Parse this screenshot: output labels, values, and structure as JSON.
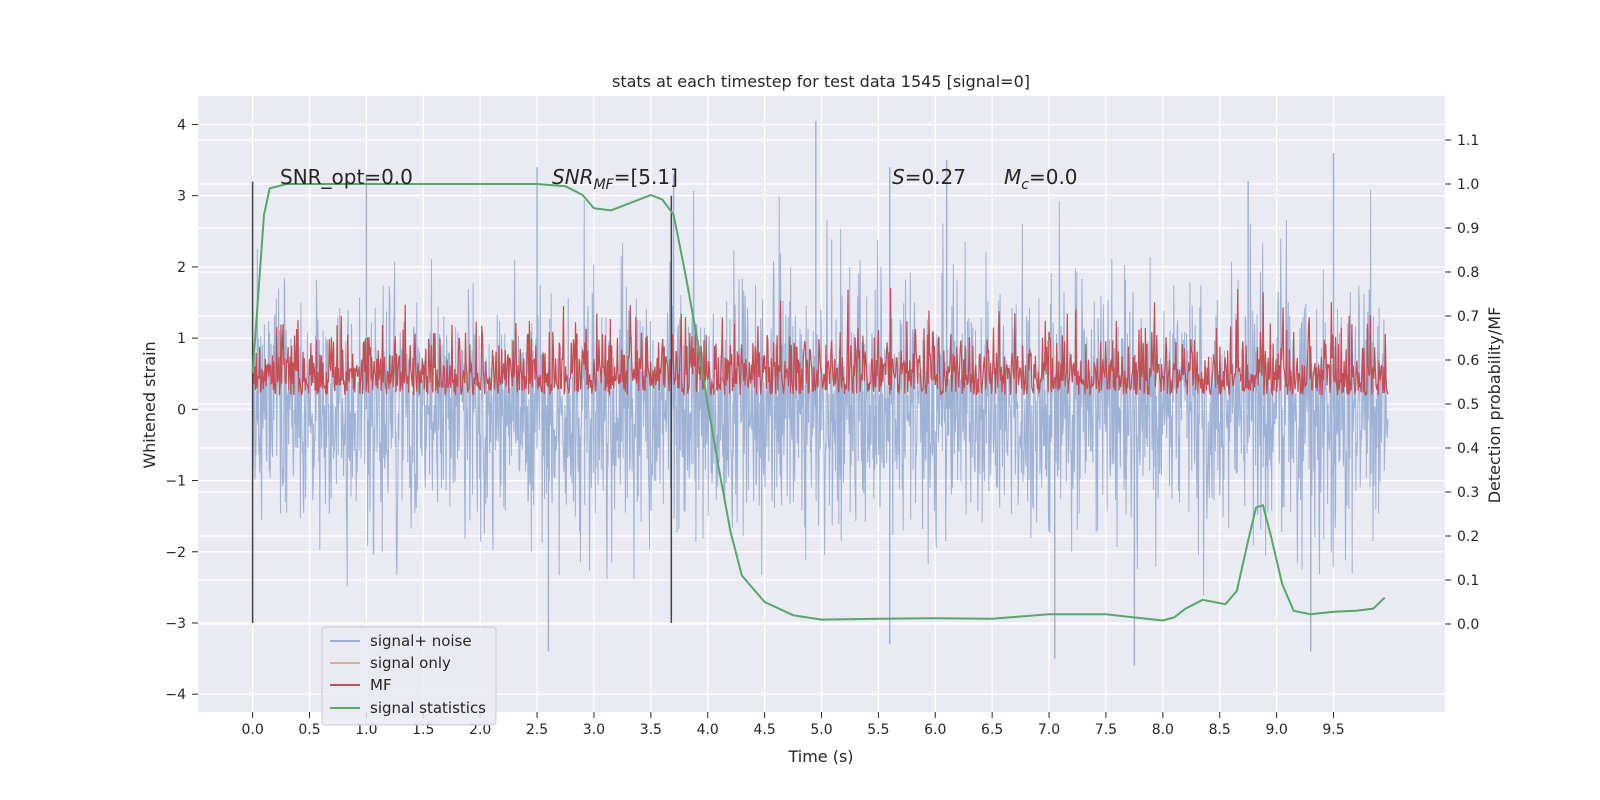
{
  "chart_data": {
    "type": "line",
    "title": "stats at each timestep for test data 1545 [signal=0]",
    "xlabel": "Time (s)",
    "ylabel": "Whitened strain",
    "y2label": "Detection probability/MF",
    "xlim": [
      -0.48,
      10.48
    ],
    "ylim": [
      -4.25,
      4.4
    ],
    "y2lim": [
      -0.2,
      1.2
    ],
    "x_ticks": [
      "0.0",
      "0.5",
      "1.0",
      "1.5",
      "2.0",
      "2.5",
      "3.0",
      "3.5",
      "4.0",
      "4.5",
      "5.0",
      "5.5",
      "6.0",
      "6.5",
      "7.0",
      "7.5",
      "8.0",
      "8.5",
      "9.0",
      "9.5"
    ],
    "y_ticks": [
      "4",
      "3",
      "2",
      "1",
      "0",
      "−1",
      "−2",
      "−3",
      "−4"
    ],
    "y2_ticks": [
      "1.1",
      "1.0",
      "0.9",
      "0.8",
      "0.7",
      "0.6",
      "0.5",
      "0.4",
      "0.3",
      "0.2",
      "0.1",
      "0.0"
    ],
    "grid": true,
    "legend_position": "lower-left",
    "annotations": {
      "snr_opt": "SNR_opt=0.0",
      "snr_mf_prefix": "SNR",
      "snr_mf_sub": "MF",
      "snr_mf_suffix": "=[5.1]",
      "s_prefix": "S",
      "s_suffix": "=0.27",
      "mc_prefix": "M",
      "mc_sub": "c",
      "mc_suffix": "=0.0"
    },
    "markers": [
      {
        "name": "start-marker",
        "x": 0.0,
        "y_range": [
          -3.0,
          3.2
        ]
      },
      {
        "name": "detection-marker",
        "x": 3.68,
        "y_range": [
          -3.0,
          3.0
        ]
      }
    ],
    "series": [
      {
        "name": "signal+ noise",
        "color": "#9aafd3",
        "axis": "left",
        "kind": "noise",
        "x_range": [
          0.0,
          9.98
        ],
        "spread": 0.85,
        "peaks": [
          [
            1.0,
            3.3
          ],
          [
            2.5,
            3.4
          ],
          [
            3.7,
            3.3
          ],
          [
            4.95,
            4.05
          ],
          [
            5.6,
            3.4
          ],
          [
            6.1,
            3.5
          ],
          [
            8.75,
            3.2
          ],
          [
            9.5,
            3.6
          ],
          [
            2.6,
            -3.4
          ],
          [
            7.05,
            -3.5
          ],
          [
            7.75,
            -3.6
          ],
          [
            9.3,
            -3.4
          ],
          [
            5.6,
            -3.3
          ]
        ]
      },
      {
        "name": "signal only",
        "color": "#e8a78f",
        "axis": "left",
        "kind": "none"
      },
      {
        "name": "MF",
        "color": "#c44e52",
        "axis": "right",
        "kind": "mf",
        "x_range": [
          0.0,
          9.98
        ],
        "base": 0.53,
        "amplitude": 0.07,
        "peaks": [
          [
            2.85,
            0.66
          ],
          [
            3.1,
            0.64
          ],
          [
            4.78,
            0.63
          ],
          [
            8.7,
            0.62
          ]
        ]
      },
      {
        "name": "signal statistics",
        "color": "#55a868",
        "axis": "right",
        "kind": "line",
        "x": [
          0.0,
          0.05,
          0.1,
          0.15,
          0.3,
          1.0,
          2.0,
          2.5,
          2.75,
          2.9,
          3.0,
          3.15,
          3.3,
          3.5,
          3.6,
          3.7,
          3.8,
          3.9,
          4.0,
          4.1,
          4.2,
          4.3,
          4.5,
          4.75,
          5.0,
          5.5,
          6.0,
          6.5,
          7.0,
          7.5,
          8.0,
          8.1,
          8.2,
          8.35,
          8.45,
          8.55,
          8.65,
          8.75,
          8.82,
          8.88,
          8.95,
          9.05,
          9.15,
          9.3,
          9.5,
          9.7,
          9.85,
          9.95
        ],
        "y": [
          0.57,
          0.75,
          0.93,
          0.99,
          1.0,
          1.0,
          1.0,
          1.0,
          0.995,
          0.975,
          0.945,
          0.94,
          0.955,
          0.975,
          0.965,
          0.93,
          0.8,
          0.66,
          0.5,
          0.35,
          0.21,
          0.11,
          0.05,
          0.02,
          0.01,
          0.012,
          0.013,
          0.012,
          0.022,
          0.022,
          0.008,
          0.015,
          0.035,
          0.055,
          0.05,
          0.045,
          0.075,
          0.19,
          0.265,
          0.27,
          0.2,
          0.09,
          0.03,
          0.022,
          0.028,
          0.03,
          0.035,
          0.06
        ]
      }
    ]
  }
}
